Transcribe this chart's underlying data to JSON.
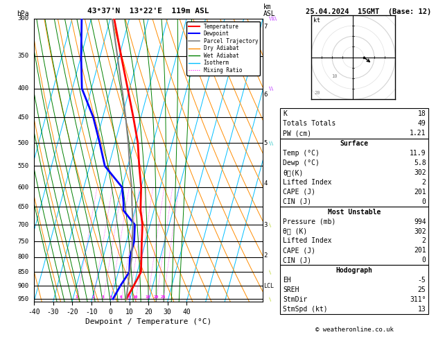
{
  "title_left": "43°37'N  13°22'E  119m ASL",
  "title_right": "25.04.2024  15GMT  (Base: 12)",
  "xlabel": "Dewpoint / Temperature (°C)",
  "copyright": "© weatheronline.co.uk",
  "pressure_levels": [
    300,
    350,
    400,
    450,
    500,
    550,
    600,
    650,
    700,
    750,
    800,
    850,
    900,
    950
  ],
  "temp_profile_p": [
    300,
    350,
    400,
    450,
    500,
    550,
    600,
    640,
    660,
    700,
    750,
    800,
    850,
    900,
    950
  ],
  "temp_profile_t": [
    -38,
    -29,
    -21,
    -14,
    -8,
    -4,
    0,
    2,
    3,
    6,
    8,
    10,
    11.9,
    10,
    8
  ],
  "dewp_profile_p": [
    300,
    350,
    400,
    450,
    500,
    550,
    600,
    640,
    660,
    700,
    750,
    800,
    850,
    900,
    950
  ],
  "dewp_profile_t": [
    -55,
    -50,
    -45,
    -35,
    -28,
    -22,
    -10,
    -7,
    -6,
    2,
    4,
    4,
    5.8,
    3,
    1
  ],
  "parcel_p": [
    950,
    900,
    850,
    800,
    750,
    700,
    650,
    600,
    550,
    500,
    450,
    400,
    350,
    300
  ],
  "parcel_t": [
    8,
    7,
    6,
    5,
    3,
    1,
    -2,
    -5,
    -9,
    -13,
    -18,
    -24,
    -31,
    -39
  ],
  "mixing_ratios": [
    1,
    2,
    3,
    4,
    6,
    8,
    10,
    15,
    20,
    25
  ],
  "km_labels": {
    "7": 310,
    "6": 410,
    "5": 500,
    "4": 590,
    "3": 700,
    "2": 795
  },
  "lcl_pressure": 900,
  "pmin": 300,
  "pmax": 960,
  "tmin": -40,
  "tmax": 40,
  "skew": 40,
  "iso_temps": [
    -60,
    -50,
    -40,
    -30,
    -20,
    -10,
    0,
    10,
    20,
    30,
    40,
    50,
    60
  ],
  "dry_thetas": [
    230,
    240,
    250,
    260,
    270,
    280,
    290,
    300,
    310,
    320,
    330,
    340,
    350,
    360,
    370,
    380,
    390,
    400,
    410,
    420,
    430
  ],
  "moist_starts": [
    -28,
    -24,
    -20,
    -16,
    -12,
    -8,
    -4,
    0,
    4,
    8,
    12,
    16,
    20,
    24,
    28,
    32,
    36
  ],
  "iso_color": "#00bfff",
  "dry_color": "#ff8c00",
  "moist_color": "#008000",
  "mr_color": "#ff00ff",
  "temp_color": "#ff0000",
  "dewp_color": "#0000ff",
  "parcel_color": "#808080",
  "bg_color": "#ffffff",
  "grid_color": "#000000",
  "stats": {
    "K": 18,
    "Totals_Totals": 49,
    "PW_cm": 1.21,
    "Surface_Temp": 11.9,
    "Surface_Dewp": 5.8,
    "Surface_thetae": 302,
    "Surface_LI": 2,
    "Surface_CAPE": 201,
    "Surface_CIN": 0,
    "MU_Pressure": 994,
    "MU_thetae": 302,
    "MU_LI": 2,
    "MU_CAPE": 201,
    "MU_CIN": 0,
    "EH": -5,
    "SREH": 25,
    "StmDir": 311,
    "StmSpd_kt": 13
  },
  "wind_barbs": [
    {
      "p": 300,
      "color": "#aa00ff",
      "u": -12,
      "v": 8
    },
    {
      "p": 400,
      "color": "#aa00ff",
      "u": -6,
      "v": 5
    },
    {
      "p": 500,
      "color": "#00bbbb",
      "u": -4,
      "v": 3
    },
    {
      "p": 700,
      "color": "#aacc00",
      "u": -2,
      "v": 2
    },
    {
      "p": 850,
      "color": "#aacc00",
      "u": -1,
      "v": 2
    },
    {
      "p": 950,
      "color": "#aacc00",
      "u": 0,
      "v": 1
    }
  ]
}
